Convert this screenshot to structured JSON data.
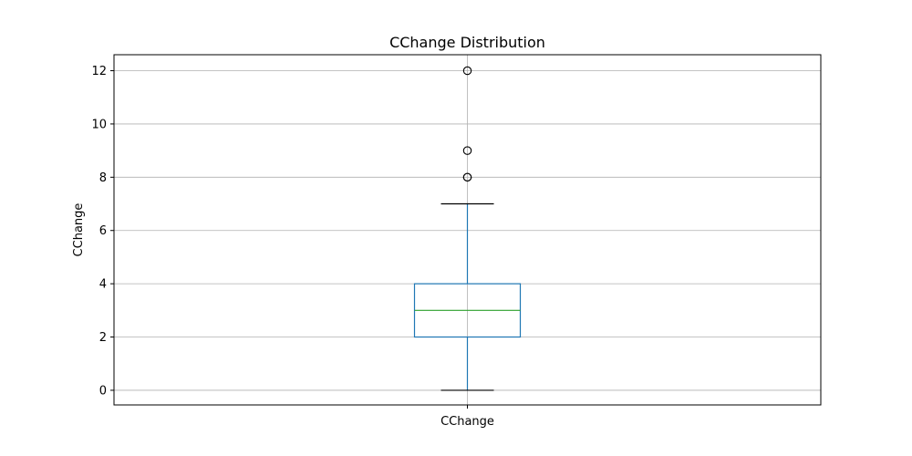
{
  "chart_data": {
    "type": "box",
    "title": "CChange Distribution",
    "xlabel": "",
    "ylabel": "CChange",
    "categories": [
      "CChange"
    ],
    "ylim": [
      -0.55,
      12.6
    ],
    "yticks": [
      0,
      2,
      4,
      6,
      8,
      10,
      12
    ],
    "grid": true,
    "boxes": [
      {
        "name": "CChange",
        "whisker_low": 0,
        "q1": 2,
        "median": 3,
        "q3": 4,
        "whisker_high": 7,
        "outliers": [
          8,
          8,
          9,
          12
        ]
      }
    ],
    "colors": {
      "box": "#1f77b4",
      "median": "#2ca02c",
      "whisker_cap": "#000000",
      "grid": "#b0b0b0",
      "outlier_edge": "#000000"
    }
  }
}
